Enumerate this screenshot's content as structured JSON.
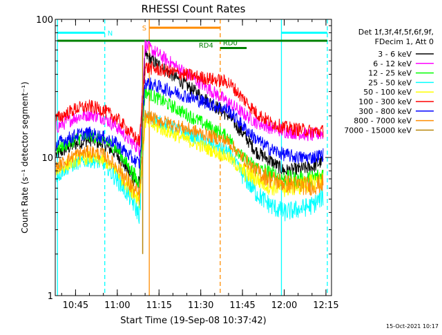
{
  "chart_data": {
    "type": "line",
    "title": "RHESSI Count Rates",
    "xlabel": "Start Time (19-Sep-08 10:37:42)",
    "ylabel": "Count Rate (s⁻¹ detector segment⁻¹)",
    "yscale": "log",
    "ylim": [
      1,
      100
    ],
    "xlim": [
      "10:37:42",
      "12:17:00"
    ],
    "x_ticks": [
      "10:45",
      "11:00",
      "11:15",
      "11:30",
      "11:45",
      "12:00",
      "12:15"
    ],
    "y_ticks": [
      "1",
      "10",
      "100"
    ],
    "grid": false,
    "legend_position": "right",
    "legend_header": [
      "Det 1f,3f,4f,5f,6f,9f,",
      "FDecim 1, Att 0"
    ],
    "timestamp": "15-Oct-2021 10:17",
    "series": [
      {
        "name": "3 - 6 keV",
        "color": "#000000",
        "x": [
          "10:38",
          "10:45",
          "10:50",
          "10:55",
          "11:00",
          "11:05",
          "11:08",
          "11:09",
          "11:10",
          "11:40",
          "11:45",
          "11:50",
          "11:55",
          "12:00",
          "12:05",
          "12:10",
          "12:14"
        ],
        "values": [
          10.5,
          12.5,
          13.5,
          12.5,
          10.5,
          7.5,
          6.2,
          20,
          55,
          20,
          15,
          11,
          9.5,
          8,
          8.2,
          8.5,
          9.5
        ]
      },
      {
        "name": "6 - 12 keV",
        "color": "#ff00ff",
        "x": [
          "10:38",
          "10:45",
          "10:50",
          "10:55",
          "11:00",
          "11:05",
          "11:08",
          "11:09",
          "11:10",
          "11:40",
          "11:45",
          "11:50",
          "11:55",
          "12:00",
          "12:05",
          "12:10",
          "12:14"
        ],
        "values": [
          16.5,
          19.5,
          20.5,
          19.5,
          16.5,
          13,
          11.5,
          30,
          65,
          25,
          21,
          18,
          16.5,
          15.5,
          15,
          14.5,
          15
        ]
      },
      {
        "name": "12 - 25 keV",
        "color": "#00ff00",
        "x": [
          "10:38",
          "10:45",
          "10:50",
          "10:55",
          "11:00",
          "11:05",
          "11:08",
          "11:09",
          "11:10",
          "11:40",
          "11:45",
          "11:50",
          "11:55",
          "12:00",
          "12:05",
          "12:10",
          "12:14"
        ],
        "values": [
          11.5,
          13.5,
          14.5,
          13.5,
          11.5,
          8,
          6.2,
          15,
          30,
          14,
          10,
          8.5,
          7.5,
          7,
          6.8,
          7,
          7.5
        ]
      },
      {
        "name": "25 - 50 keV",
        "color": "#00ffff",
        "x": [
          "10:38",
          "10:45",
          "10:50",
          "10:55",
          "11:00",
          "11:05",
          "11:08",
          "11:09",
          "11:10",
          "11:40",
          "11:45",
          "11:50",
          "11:55",
          "12:00",
          "12:05",
          "12:10",
          "12:14"
        ],
        "values": [
          7.5,
          9,
          9.5,
          9,
          7,
          5,
          3.8,
          9,
          20,
          11,
          7.5,
          5.5,
          4.5,
          4,
          4.2,
          4.5,
          5.2
        ]
      },
      {
        "name": "50 - 100 keV",
        "color": "#ffff00",
        "x": [
          "10:38",
          "10:45",
          "10:50",
          "10:55",
          "11:00",
          "11:05",
          "11:08",
          "11:09",
          "11:10",
          "11:40",
          "11:45",
          "11:50",
          "11:55",
          "12:00",
          "12:05",
          "12:10",
          "12:14"
        ],
        "values": [
          8,
          9.5,
          10,
          9.5,
          8,
          6,
          5,
          9,
          18,
          10,
          8,
          7,
          6.2,
          6,
          6.2,
          6.5,
          7
        ]
      },
      {
        "name": "100 - 300 keV",
        "color": "#ff0000",
        "x": [
          "10:38",
          "10:45",
          "10:50",
          "10:55",
          "11:00",
          "11:05",
          "11:08",
          "11:09",
          "11:10",
          "11:40",
          "11:45",
          "11:50",
          "11:55",
          "12:00",
          "12:05",
          "12:10",
          "12:14"
        ],
        "values": [
          19,
          22.5,
          23.5,
          22,
          19,
          15,
          13,
          25,
          45,
          35,
          27,
          21,
          18,
          16.5,
          16,
          15.5,
          15.5
        ]
      },
      {
        "name": "300 - 800 keV",
        "color": "#0000ff",
        "x": [
          "10:38",
          "10:45",
          "10:50",
          "10:55",
          "11:00",
          "11:05",
          "11:08",
          "11:09",
          "11:10",
          "11:40",
          "11:45",
          "11:50",
          "11:55",
          "12:00",
          "12:05",
          "12:10",
          "12:14"
        ],
        "values": [
          12.5,
          14.5,
          15,
          14,
          12.5,
          10,
          9,
          18,
          35,
          22,
          17,
          13.5,
          11.5,
          10.5,
          10,
          10,
          10.5
        ]
      },
      {
        "name": "800 - 7000 keV",
        "color": "#ff8c00",
        "x": [
          "10:38",
          "10:45",
          "10:50",
          "10:55",
          "11:00",
          "11:05",
          "11:08",
          "11:09",
          "11:10",
          "11:40",
          "11:45",
          "11:50",
          "11:55",
          "12:00",
          "12:05",
          "12:10",
          "12:14"
        ],
        "values": [
          8.5,
          10.5,
          11,
          10.5,
          8.5,
          6.2,
          5.2,
          10,
          20,
          13,
          10,
          8,
          7,
          6.5,
          6.3,
          6.2,
          6.5
        ]
      },
      {
        "name": "7000 - 15000 keV",
        "color": "#b8860b",
        "x": [
          "10:38",
          "10:45",
          "10:50",
          "10:55",
          "11:00",
          "11:05",
          "11:08",
          "11:09",
          "11:10",
          "11:40",
          "11:45",
          "11:50",
          "11:55",
          "12:00",
          "12:05",
          "12:10",
          "12:14"
        ],
        "values": [
          null,
          null,
          null,
          null,
          null,
          null,
          null,
          2,
          65,
          null,
          null,
          null,
          null,
          null,
          null,
          null,
          null
        ]
      }
    ],
    "vertical_markers": [
      {
        "time": "10:38:30",
        "color": "#00ffff",
        "style": "solid"
      },
      {
        "time": "10:55:30",
        "color": "#00ffff",
        "style": "dashed"
      },
      {
        "time": "11:11:30",
        "color": "#ff8c00",
        "style": "solid"
      },
      {
        "time": "11:37:00",
        "color": "#ff8c00",
        "style": "dashed"
      },
      {
        "time": "11:59:00",
        "color": "#00ffff",
        "style": "solid"
      },
      {
        "time": "12:15:30",
        "color": "#00ffff",
        "style": "dashed"
      }
    ],
    "annotation_bars": [
      {
        "label": "N",
        "color": "#00ffff",
        "from": "10:38:30",
        "to": "10:55:30",
        "level": 80
      },
      {
        "label": "",
        "color": "#00ffff",
        "from": "11:59:00",
        "to": "12:15:30",
        "level": 80
      },
      {
        "label": "S",
        "color": "#ff8c00",
        "from": "11:11:30",
        "to": "11:37:00",
        "level": 87
      },
      {
        "label": "",
        "color": "#008000",
        "from": "10:38:30",
        "to": "12:15:30",
        "level": 70
      },
      {
        "label": "RD4",
        "color": "#008000",
        "from": "11:29:00",
        "to": "11:37:00",
        "level": 70
      },
      {
        "label": "RD0",
        "color": "#008000",
        "from": "11:37:00",
        "to": "11:46:30",
        "level": 62
      }
    ]
  }
}
